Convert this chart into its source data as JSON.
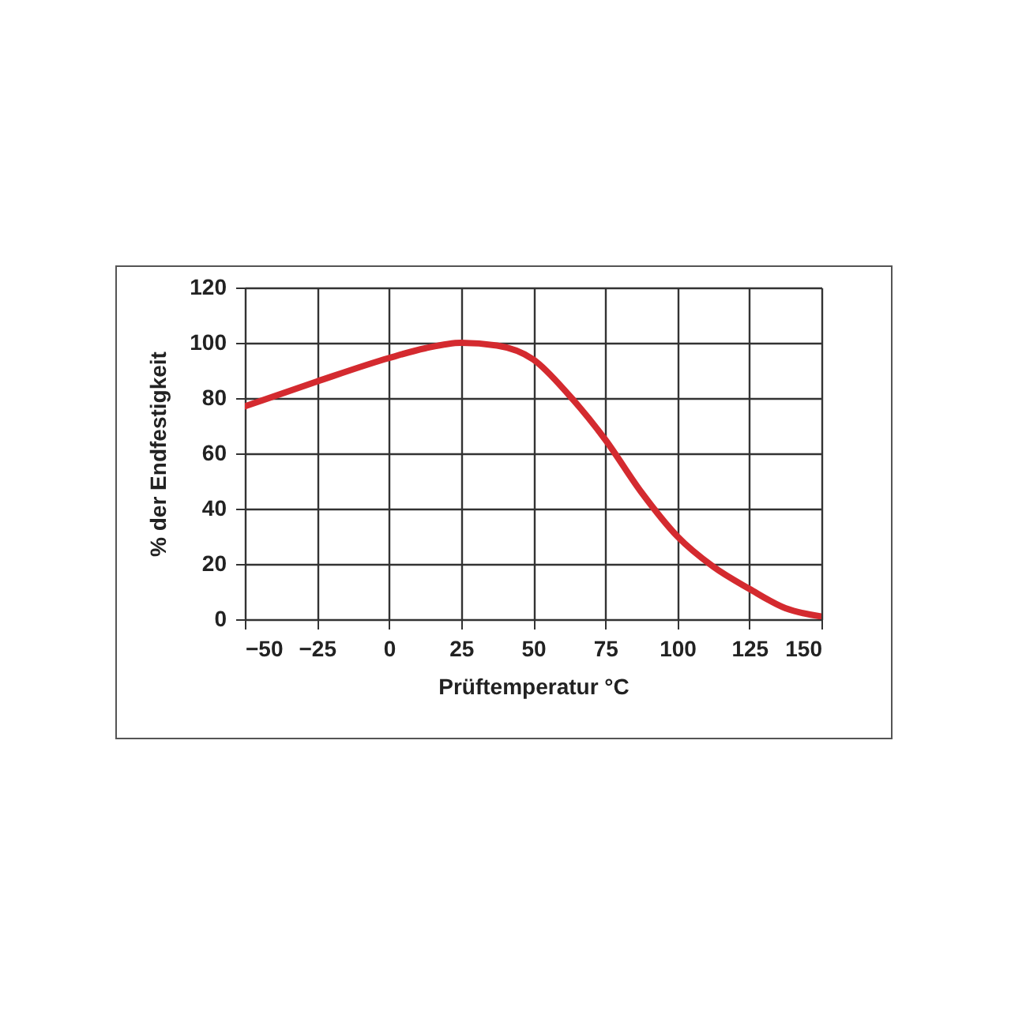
{
  "chart_data": {
    "type": "line",
    "xlabel": "Prüftemperatur °C",
    "ylabel": "% der Endfestigkeit",
    "x": [
      -50,
      -25,
      0,
      12.5,
      25,
      37.5,
      50,
      62.5,
      75,
      87.5,
      100,
      112.5,
      125,
      137.5,
      150
    ],
    "series": [
      {
        "color": "#d42a2f",
        "values": [
          77,
          86,
          94.5,
          98,
          100,
          99,
          94,
          81,
          65,
          46,
          30,
          19,
          11,
          4,
          1
        ]
      }
    ],
    "xlim": [
      -50,
      150
    ],
    "xticks": [
      -50,
      -25,
      0,
      25,
      50,
      75,
      100,
      125,
      150
    ],
    "ylim": [
      0,
      120
    ],
    "yticks": [
      0,
      20,
      40,
      60,
      80,
      100,
      120
    ],
    "grid": true,
    "marker": "none",
    "line_style": "solid"
  }
}
